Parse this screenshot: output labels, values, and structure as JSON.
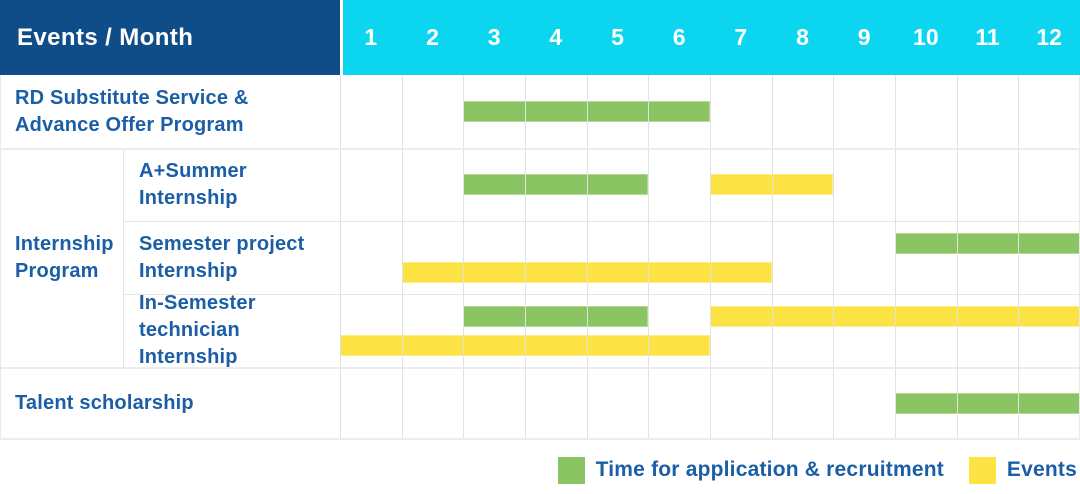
{
  "header": {
    "title": "Events / Month",
    "months": [
      "1",
      "2",
      "3",
      "4",
      "5",
      "6",
      "7",
      "8",
      "9",
      "10",
      "11",
      "12"
    ]
  },
  "colors": {
    "header_bg": "#0f4d88",
    "months_bg": "#0cd5f0",
    "label_text": "#1b5ea6",
    "green": "#8bc462",
    "yellow": "#fde243",
    "grid": "#e2e2e2"
  },
  "legend": {
    "items": [
      {
        "swatch": "green",
        "label": "Time for application & recruitment"
      },
      {
        "swatch": "yellow",
        "label": "Events"
      }
    ]
  },
  "ui": {
    "group": {
      "name": "internship-program",
      "label_lines": [
        "Internship",
        "Program"
      ]
    },
    "rows": [
      {
        "name": "rd-substitute-service",
        "type": "full",
        "label_lines": [
          "RD Substitute Service &",
          "Advance Offer Program"
        ],
        "bars": [
          {
            "color": "green",
            "start": 3,
            "end": 6,
            "line": "center"
          }
        ]
      },
      {
        "name": "a-plus-summer-internship",
        "type": "sub",
        "label_lines": [
          "A+Summer",
          "Internship"
        ],
        "bars": [
          {
            "color": "green",
            "start": 3,
            "end": 5,
            "line": "center"
          },
          {
            "color": "yellow",
            "start": 7,
            "end": 8,
            "line": "center"
          }
        ]
      },
      {
        "name": "semester-project-internship",
        "type": "sub",
        "label_lines": [
          "Semester project",
          "Internship"
        ],
        "bars": [
          {
            "color": "green",
            "start": 10,
            "end": 12,
            "line": "top"
          },
          {
            "color": "yellow",
            "start": 2,
            "end": 7,
            "line": "bottom"
          }
        ]
      },
      {
        "name": "in-semester-technician-internship",
        "type": "sub",
        "label_lines": [
          "In-Semester",
          "technician Internship"
        ],
        "bars": [
          {
            "color": "green",
            "start": 3,
            "end": 5,
            "line": "top"
          },
          {
            "color": "yellow",
            "start": 7,
            "end": 12,
            "line": "top"
          },
          {
            "color": "yellow",
            "start": 1,
            "end": 6,
            "line": "bottom"
          }
        ]
      },
      {
        "name": "talent-scholarship",
        "type": "full",
        "label_lines": [
          "Talent scholarship"
        ],
        "bars": [
          {
            "color": "green",
            "start": 10,
            "end": 12,
            "line": "center"
          }
        ]
      }
    ]
  },
  "chart_data": {
    "type": "bar",
    "subtype": "gantt-timeline",
    "title": "Events / Month",
    "x": {
      "label": "Month",
      "ticks": [
        1,
        2,
        3,
        4,
        5,
        6,
        7,
        8,
        9,
        10,
        11,
        12
      ],
      "range": [
        1,
        12
      ]
    },
    "series_legend": [
      {
        "name": "Time for application & recruitment",
        "color": "#8bc462"
      },
      {
        "name": "Events",
        "color": "#fde243"
      }
    ],
    "rows": [
      {
        "group": null,
        "event": "RD Substitute Service & Advance Offer Program",
        "spans": [
          {
            "series": "Time for application & recruitment",
            "months": [
              3,
              6
            ]
          }
        ]
      },
      {
        "group": "Internship Program",
        "event": "A+Summer Internship",
        "spans": [
          {
            "series": "Time for application & recruitment",
            "months": [
              3,
              5
            ]
          },
          {
            "series": "Events",
            "months": [
              7,
              8
            ]
          }
        ]
      },
      {
        "group": "Internship Program",
        "event": "Semester project Internship",
        "spans": [
          {
            "series": "Time for application & recruitment",
            "months": [
              10,
              12
            ]
          },
          {
            "series": "Events",
            "months": [
              2,
              7
            ]
          }
        ]
      },
      {
        "group": "Internship Program",
        "event": "In-Semester technician Internship",
        "spans": [
          {
            "series": "Time for application & recruitment",
            "months": [
              3,
              5
            ]
          },
          {
            "series": "Events",
            "months": [
              7,
              12
            ]
          },
          {
            "series": "Events",
            "months": [
              1,
              6
            ]
          }
        ]
      },
      {
        "group": null,
        "event": "Talent scholarship",
        "spans": [
          {
            "series": "Time for application & recruitment",
            "months": [
              10,
              12
            ]
          }
        ]
      }
    ],
    "grid": true,
    "legend_position": "bottom-right"
  }
}
